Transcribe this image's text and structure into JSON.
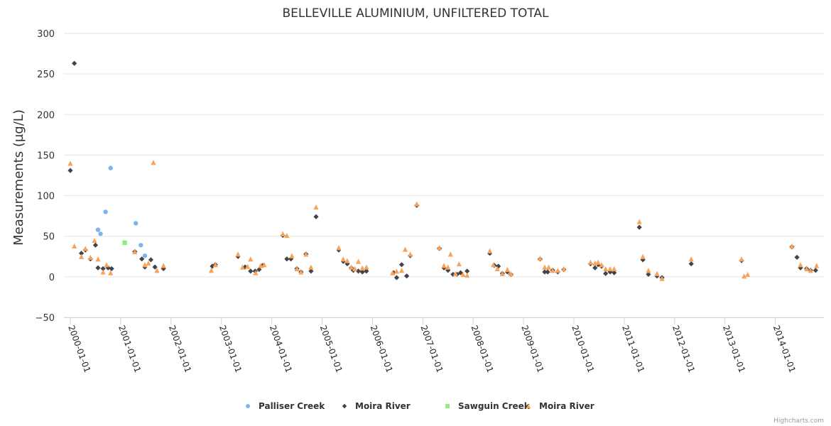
{
  "chart_data": {
    "type": "scatter",
    "title": "BELLEVILLE ALUMINIUM, UNFILTERED TOTAL",
    "xlabel": "",
    "ylabel": "Measurements (µg/L)",
    "ylim": [
      -50,
      300
    ],
    "yticks": [
      "300",
      "250",
      "200",
      "150",
      "100",
      "50",
      "0",
      "−50"
    ],
    "ytick_values": [
      300,
      250,
      200,
      150,
      100,
      50,
      0,
      -50
    ],
    "xlim": [
      2000.0,
      2014.85
    ],
    "xticks": [
      "2000-01-01",
      "2001-01-01",
      "2002-01-01",
      "2003-01-01",
      "2004-01-01",
      "2005-01-01",
      "2006-01-01",
      "2007-01-01",
      "2008-01-01",
      "2009-01-01",
      "2010-01-01",
      "2011-01-01",
      "2012-01-01",
      "2013-01-01",
      "2014-01-01"
    ],
    "xtick_values": [
      2000,
      2001,
      2002,
      2003,
      2004,
      2005,
      2006,
      2007,
      2008,
      2009,
      2010,
      2011,
      2012,
      2013,
      2014
    ],
    "grid": true,
    "legend_position": "bottom",
    "credits": "Highcharts.com",
    "series": [
      {
        "name": "Palliser Creek",
        "marker": "circle",
        "color": "#7cb5ec",
        "points": [
          [
            2000.55,
            58
          ],
          [
            2000.6,
            53
          ],
          [
            2000.7,
            80
          ],
          [
            2000.8,
            134
          ],
          [
            2001.3,
            66
          ],
          [
            2001.4,
            39
          ],
          [
            2001.48,
            26
          ]
        ]
      },
      {
        "name": "Moira River",
        "marker": "diamond",
        "color": "#434348",
        "points": [
          [
            2000.0,
            131
          ],
          [
            2000.08,
            263
          ],
          [
            2000.22,
            29
          ],
          [
            2000.3,
            33
          ],
          [
            2000.4,
            22
          ],
          [
            2000.5,
            39
          ],
          [
            2000.55,
            11
          ],
          [
            2000.65,
            10
          ],
          [
            2000.75,
            11
          ],
          [
            2000.82,
            10
          ],
          [
            2001.28,
            31
          ],
          [
            2001.42,
            22
          ],
          [
            2001.48,
            12
          ],
          [
            2001.6,
            21
          ],
          [
            2001.68,
            12
          ],
          [
            2001.85,
            10
          ],
          [
            2002.82,
            13
          ],
          [
            2002.88,
            15
          ],
          [
            2003.33,
            25
          ],
          [
            2003.47,
            12
          ],
          [
            2003.58,
            7
          ],
          [
            2003.67,
            7
          ],
          [
            2003.75,
            9
          ],
          [
            2003.82,
            14
          ],
          [
            2004.22,
            51
          ],
          [
            2004.3,
            22
          ],
          [
            2004.38,
            22
          ],
          [
            2004.5,
            10
          ],
          [
            2004.58,
            6
          ],
          [
            2004.68,
            28
          ],
          [
            2004.78,
            7
          ],
          [
            2004.88,
            74
          ],
          [
            2005.33,
            33
          ],
          [
            2005.42,
            19
          ],
          [
            2005.5,
            16
          ],
          [
            2005.58,
            11
          ],
          [
            2005.62,
            8
          ],
          [
            2005.72,
            7
          ],
          [
            2005.8,
            6
          ],
          [
            2005.88,
            7
          ],
          [
            2006.42,
            5
          ],
          [
            2006.48,
            -1
          ],
          [
            2006.58,
            15
          ],
          [
            2006.68,
            1
          ],
          [
            2006.75,
            26
          ],
          [
            2006.88,
            88
          ],
          [
            2007.33,
            35
          ],
          [
            2007.42,
            11
          ],
          [
            2007.5,
            8
          ],
          [
            2007.6,
            3
          ],
          [
            2007.68,
            3
          ],
          [
            2007.75,
            5
          ],
          [
            2007.88,
            7
          ],
          [
            2008.33,
            29
          ],
          [
            2008.42,
            14
          ],
          [
            2008.5,
            13
          ],
          [
            2008.58,
            4
          ],
          [
            2008.68,
            6
          ],
          [
            2008.75,
            3
          ],
          [
            2009.33,
            22
          ],
          [
            2009.42,
            6
          ],
          [
            2009.48,
            6
          ],
          [
            2009.58,
            8
          ],
          [
            2009.68,
            6
          ],
          [
            2009.8,
            9
          ],
          [
            2010.33,
            16
          ],
          [
            2010.42,
            11
          ],
          [
            2010.48,
            15
          ],
          [
            2010.55,
            13
          ],
          [
            2010.63,
            4
          ],
          [
            2010.72,
            6
          ],
          [
            2010.8,
            5
          ],
          [
            2011.3,
            61
          ],
          [
            2011.37,
            21
          ],
          [
            2011.48,
            3
          ],
          [
            2011.65,
            1
          ],
          [
            2011.75,
            -1
          ],
          [
            2012.33,
            16
          ],
          [
            2013.33,
            20
          ],
          [
            2014.33,
            37
          ],
          [
            2014.43,
            24
          ],
          [
            2014.5,
            11
          ],
          [
            2014.62,
            10
          ],
          [
            2014.7,
            8
          ],
          [
            2014.8,
            8
          ]
        ]
      },
      {
        "name": "Sawguin Creek",
        "marker": "square",
        "color": "#90ed7d",
        "points": [
          [
            2001.08,
            42
          ]
        ]
      },
      {
        "name": "Moira River",
        "marker": "triangle",
        "color": "#f7a35c",
        "points": [
          [
            2000.0,
            140
          ],
          [
            2000.08,
            38
          ],
          [
            2000.22,
            25
          ],
          [
            2000.3,
            35
          ],
          [
            2000.4,
            24
          ],
          [
            2000.48,
            45
          ],
          [
            2000.55,
            22
          ],
          [
            2000.65,
            6
          ],
          [
            2000.72,
            15
          ],
          [
            2000.8,
            5
          ],
          [
            2001.28,
            31
          ],
          [
            2001.48,
            15
          ],
          [
            2001.55,
            17
          ],
          [
            2001.65,
            141
          ],
          [
            2001.72,
            8
          ],
          [
            2001.85,
            14
          ],
          [
            2002.8,
            8
          ],
          [
            2002.88,
            15
          ],
          [
            2003.33,
            28
          ],
          [
            2003.42,
            12
          ],
          [
            2003.52,
            13
          ],
          [
            2003.58,
            22
          ],
          [
            2003.68,
            5
          ],
          [
            2003.78,
            14
          ],
          [
            2003.85,
            15
          ],
          [
            2004.22,
            53
          ],
          [
            2004.3,
            51
          ],
          [
            2004.4,
            26
          ],
          [
            2004.5,
            10
          ],
          [
            2004.58,
            6
          ],
          [
            2004.68,
            28
          ],
          [
            2004.78,
            12
          ],
          [
            2004.88,
            86
          ],
          [
            2005.33,
            36
          ],
          [
            2005.42,
            22
          ],
          [
            2005.5,
            20
          ],
          [
            2005.58,
            12
          ],
          [
            2005.65,
            10
          ],
          [
            2005.72,
            19
          ],
          [
            2005.8,
            11
          ],
          [
            2005.88,
            12
          ],
          [
            2006.4,
            5
          ],
          [
            2006.48,
            7
          ],
          [
            2006.58,
            8
          ],
          [
            2006.65,
            34
          ],
          [
            2006.75,
            28
          ],
          [
            2006.88,
            90
          ],
          [
            2007.33,
            36
          ],
          [
            2007.42,
            14
          ],
          [
            2007.5,
            12
          ],
          [
            2007.55,
            28
          ],
          [
            2007.65,
            4
          ],
          [
            2007.72,
            16
          ],
          [
            2007.8,
            3
          ],
          [
            2007.88,
            2
          ],
          [
            2008.33,
            32
          ],
          [
            2008.4,
            15
          ],
          [
            2008.48,
            10
          ],
          [
            2008.58,
            4
          ],
          [
            2008.68,
            9
          ],
          [
            2008.75,
            4
          ],
          [
            2009.33,
            23
          ],
          [
            2009.42,
            12
          ],
          [
            2009.5,
            12
          ],
          [
            2009.58,
            8
          ],
          [
            2009.68,
            8
          ],
          [
            2009.8,
            10
          ],
          [
            2010.33,
            18
          ],
          [
            2010.42,
            17
          ],
          [
            2010.48,
            18
          ],
          [
            2010.55,
            15
          ],
          [
            2010.63,
            10
          ],
          [
            2010.72,
            10
          ],
          [
            2010.8,
            10
          ],
          [
            2011.3,
            68
          ],
          [
            2011.37,
            25
          ],
          [
            2011.48,
            8
          ],
          [
            2011.65,
            4
          ],
          [
            2011.75,
            -2
          ],
          [
            2012.33,
            22
          ],
          [
            2013.33,
            22
          ],
          [
            2013.38,
            1
          ],
          [
            2013.45,
            3
          ],
          [
            2014.33,
            38
          ],
          [
            2014.5,
            15
          ],
          [
            2014.62,
            10
          ],
          [
            2014.7,
            8
          ],
          [
            2014.82,
            14
          ]
        ]
      }
    ]
  }
}
